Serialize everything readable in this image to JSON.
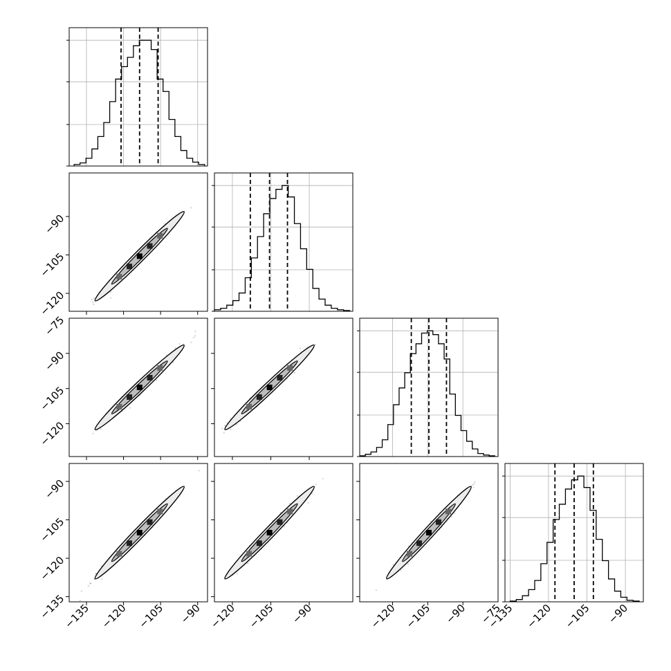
{
  "chart_data": {
    "type": "corner",
    "title": "",
    "parameters": [
      {
        "label": "",
        "range": [
          -142,
          -86
        ],
        "ticks": [
          -135,
          -120,
          -105,
          -90
        ],
        "quantiles": [
          -121.0,
          -113.5,
          -106.0
        ],
        "histogram": {
          "bin_edges": [
            -140,
            -137.6,
            -135.2,
            -132.8,
            -130.4,
            -128,
            -125.6,
            -123.2,
            -120.8,
            -118.4,
            -116,
            -113.6,
            -111.2,
            -108.8,
            -106.4,
            -104,
            -101.6,
            -99.2,
            -96.8,
            -94.4,
            -92,
            -89.6,
            -87.2
          ],
          "counts": [
            2,
            4,
            10,
            22,
            38,
            56,
            83,
            112,
            128,
            140,
            155,
            162,
            162,
            150,
            112,
            96,
            60,
            38,
            20,
            10,
            5,
            2
          ]
        }
      },
      {
        "label": "",
        "range": [
          -127,
          -73
        ],
        "ticks": [
          -120,
          -105,
          -90
        ],
        "quantiles": [
          -113.0,
          -105.5,
          -98.5
        ],
        "histogram": {
          "bin_edges": [
            -127,
            -124.6,
            -122.2,
            -119.8,
            -117.4,
            -115,
            -112.6,
            -110.2,
            -107.8,
            -105.4,
            -103,
            -100.6,
            -98.2,
            -95.8,
            -93.4,
            -91,
            -88.6,
            -86.2,
            -83.8,
            -81.4,
            -79,
            -76.6,
            -74.2
          ],
          "counts": [
            2,
            4,
            8,
            14,
            24,
            44,
            70,
            98,
            128,
            148,
            160,
            165,
            150,
            115,
            82,
            55,
            30,
            16,
            8,
            4,
            2,
            1
          ]
        }
      },
      {
        "label": "",
        "range": [
          -134,
          -75
        ],
        "ticks": [
          -120,
          -105,
          -90,
          -75
        ],
        "quantiles": [
          -112.0,
          -104.5,
          -97.0
        ],
        "histogram": {
          "bin_edges": [
            -134,
            -131.6,
            -129.2,
            -126.8,
            -124.4,
            -122,
            -119.6,
            -117.2,
            -114.8,
            -112.4,
            -110,
            -107.6,
            -105.2,
            -102.8,
            -100.4,
            -98,
            -95.6,
            -93.2,
            -90.8,
            -88.4,
            -86,
            -83.6,
            -81.2,
            -78.8,
            -76.4
          ],
          "counts": [
            1,
            3,
            6,
            12,
            22,
            42,
            68,
            90,
            110,
            135,
            148,
            162,
            165,
            160,
            148,
            128,
            82,
            54,
            34,
            20,
            10,
            4,
            2,
            1
          ]
        }
      },
      {
        "label": "",
        "range": [
          -137,
          -83
        ],
        "ticks": [
          -135,
          -120,
          -105,
          -90
        ],
        "quantiles": [
          -117.5,
          -110.0,
          -102.5
        ],
        "histogram": {
          "bin_edges": [
            -135,
            -132.6,
            -130.2,
            -127.8,
            -125.4,
            -123,
            -120.6,
            -118.2,
            -115.8,
            -113.4,
            -111,
            -108.6,
            -106.2,
            -103.8,
            -101.4,
            -99,
            -96.6,
            -94.2,
            -91.8,
            -89.4,
            -87,
            -84.6
          ],
          "counts": [
            1,
            3,
            8,
            16,
            28,
            50,
            78,
            108,
            128,
            148,
            160,
            165,
            150,
            120,
            82,
            54,
            30,
            14,
            6,
            2,
            1
          ]
        }
      }
    ],
    "grid": true
  }
}
